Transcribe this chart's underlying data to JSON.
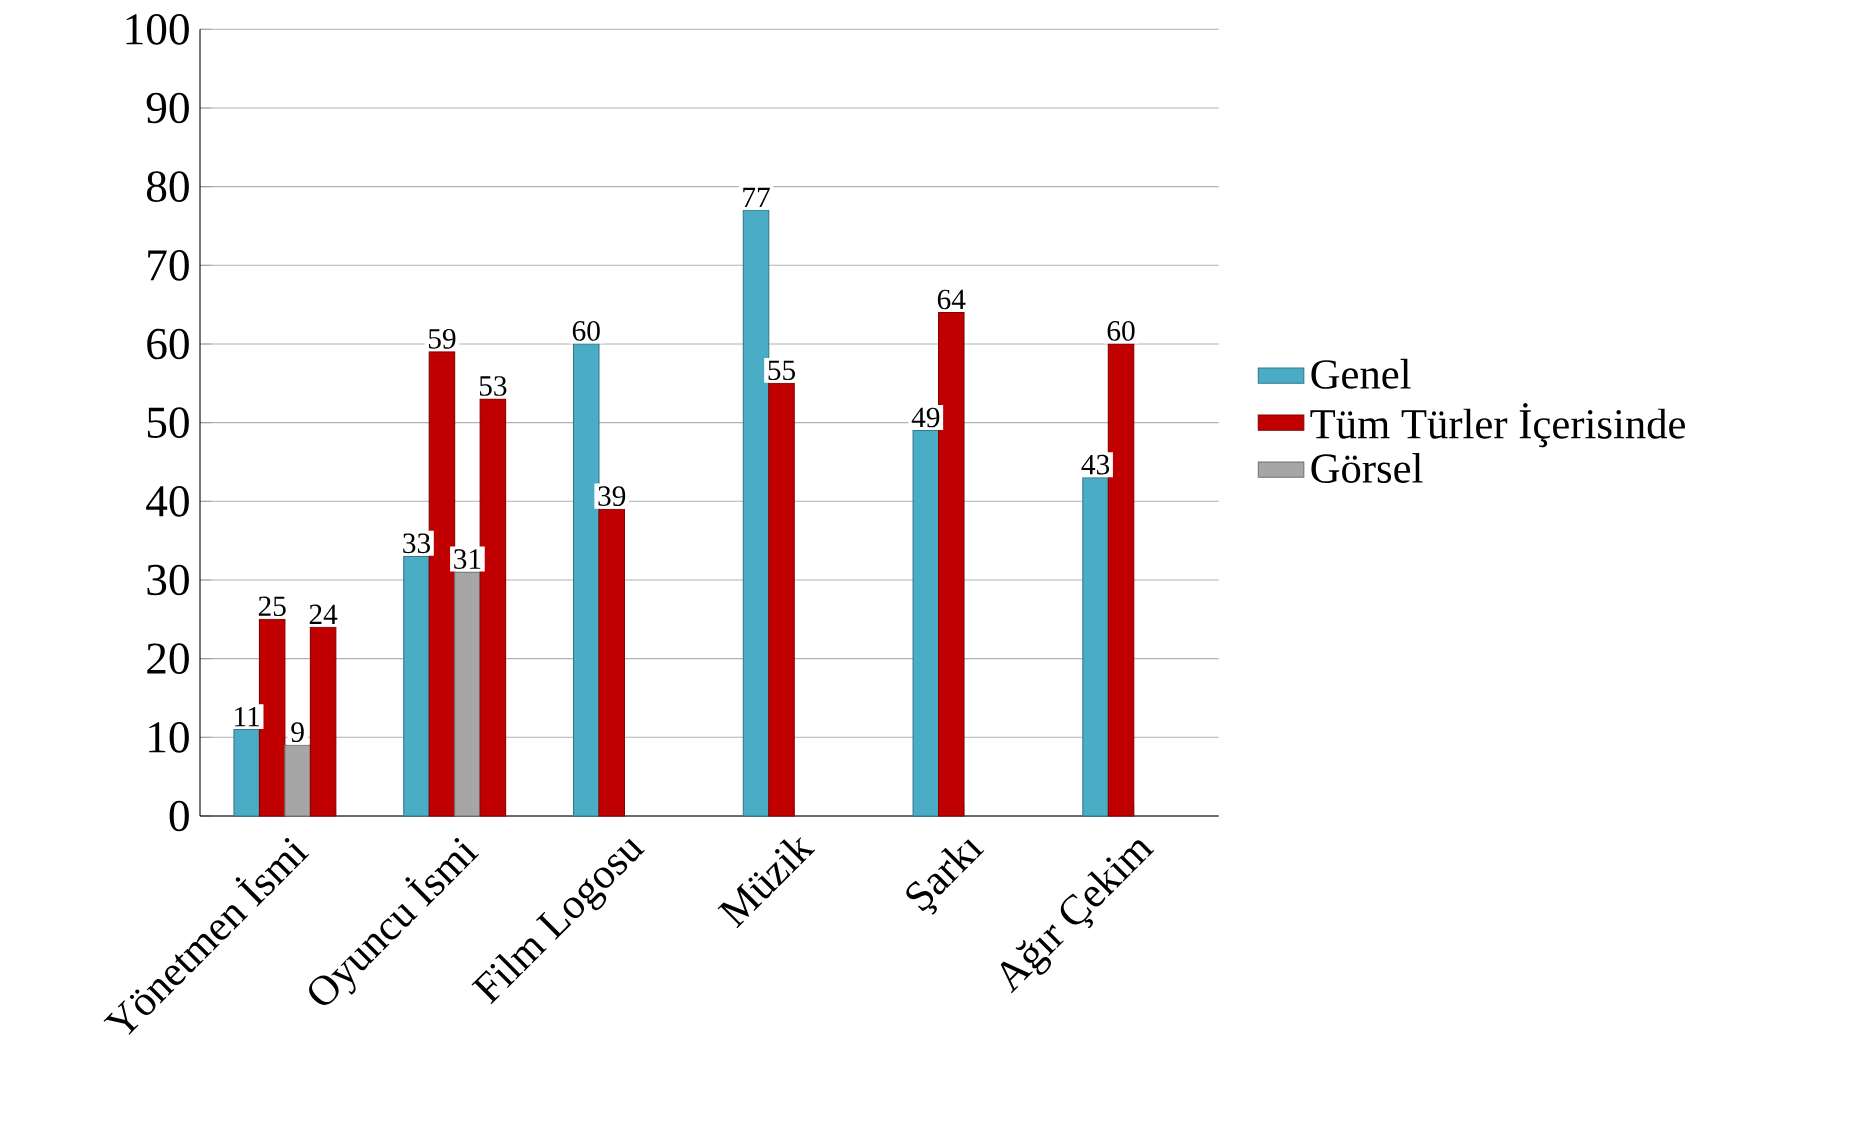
{
  "chart_data": {
    "type": "bar",
    "categories": [
      "Yönetmen İsmi",
      "Oyuncu İsmi",
      "Film Logosu",
      "Müzik",
      "Şarkı",
      "Ağır Çekim"
    ],
    "series": [
      {
        "name": "Genel",
        "color": "#4bacc6",
        "values": [
          11,
          33,
          60,
          77,
          49,
          43
        ]
      },
      {
        "name": "Tüm Türler İçerisinde",
        "color": "#c00000",
        "values": [
          25,
          59,
          39,
          55,
          64,
          60
        ]
      },
      {
        "name": "Görsel",
        "color": "#a6a6a6",
        "values": [
          9,
          31,
          null,
          null,
          null,
          null
        ]
      },
      {
        "color": "#c00000",
        "values": [
          24,
          53,
          null,
          null,
          null,
          null
        ]
      }
    ],
    "ylim": [
      0,
      100
    ],
    "yticks": [
      0,
      10,
      20,
      30,
      40,
      50,
      60,
      70,
      80,
      90,
      100
    ],
    "grid": "y",
    "legend": "right",
    "data_labels": true
  }
}
